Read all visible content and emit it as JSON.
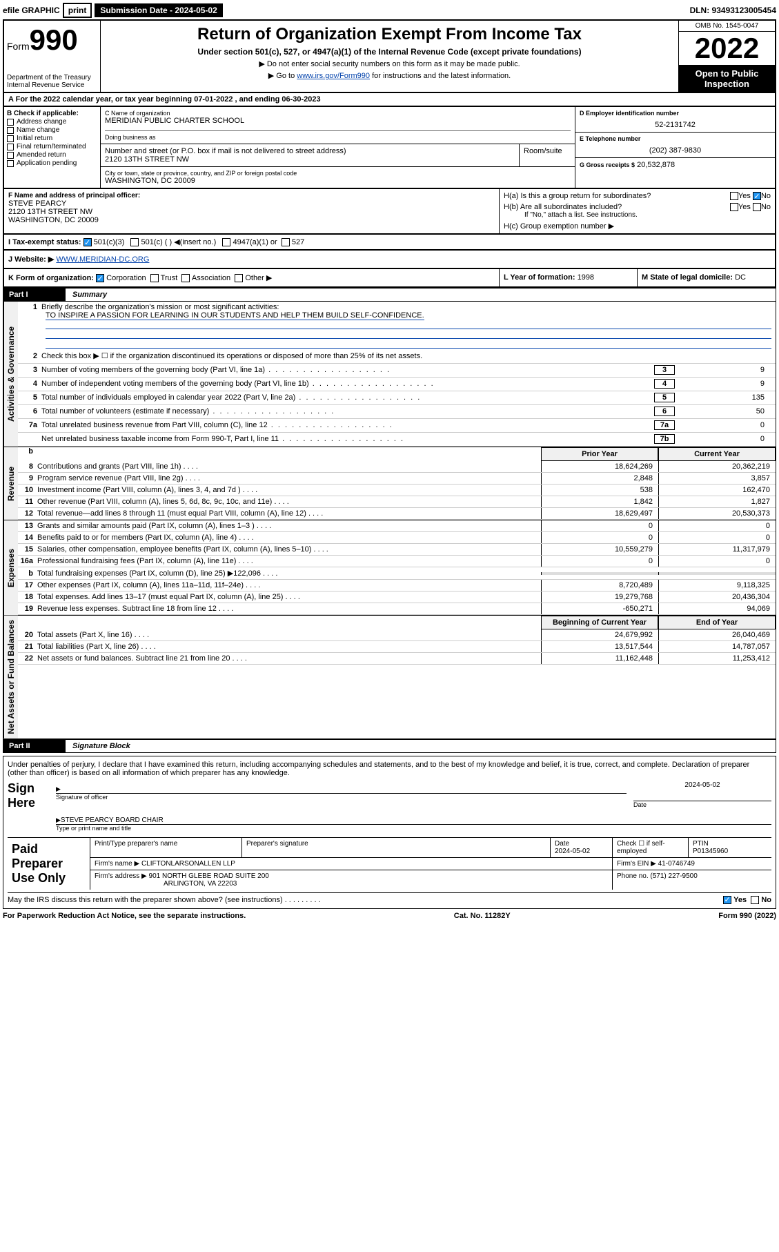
{
  "topbar": {
    "efile_label": "efile GRAPHIC",
    "print": "print",
    "sub_label": "Submission Date - 2024-05-02",
    "dln": "DLN: 93493123005454"
  },
  "header": {
    "form_word": "Form",
    "form_num": "990",
    "dept": "Department of the Treasury",
    "irs": "Internal Revenue Service",
    "title": "Return of Organization Exempt From Income Tax",
    "sub": "Under section 501(c), 527, or 4947(a)(1) of the Internal Revenue Code (except private foundations)",
    "note1": "▶ Do not enter social security numbers on this form as it may be made public.",
    "note2_pre": "▶ Go to ",
    "note2_link": "www.irs.gov/Form990",
    "note2_post": " for instructions and the latest information.",
    "omb": "OMB No. 1545-0047",
    "year": "2022",
    "open": "Open to Public Inspection"
  },
  "row_a": "For the 2022 calendar year, or tax year beginning 07-01-2022   , and ending 06-30-2023",
  "col_b": {
    "label": "B Check if applicable:",
    "items": [
      "Address change",
      "Name change",
      "Initial return",
      "Final return/terminated",
      "Amended return",
      "Application pending"
    ]
  },
  "box_c": {
    "label": "C Name of organization",
    "name": "MERIDIAN PUBLIC CHARTER SCHOOL",
    "dba": "Doing business as",
    "street_label": "Number and street (or P.O. box if mail is not delivered to street address)",
    "room": "Room/suite",
    "street": "2120 13TH STREET NW",
    "city_label": "City or town, state or province, country, and ZIP or foreign postal code",
    "city": "WASHINGTON, DC  20009"
  },
  "box_d": {
    "label": "D Employer identification number",
    "ein": "52-2131742"
  },
  "box_e": {
    "label": "E Telephone number",
    "phone": "(202) 387-9830"
  },
  "box_g": {
    "label": "G Gross receipts $",
    "val": "20,532,878"
  },
  "box_f": {
    "label": "F Name and address of principal officer:",
    "name": "STEVE PEARCY",
    "addr1": "2120 13TH STREET NW",
    "addr2": "WASHINGTON, DC  20009"
  },
  "box_h": {
    "ha": "H(a)  Is this a group return for subordinates?",
    "hb": "H(b)  Are all subordinates included?",
    "hb_note": "If \"No,\" attach a list. See instructions.",
    "hc": "H(c)  Group exemption number ▶",
    "yes": "Yes",
    "no": "No"
  },
  "box_i": {
    "label": "I   Tax-exempt status:",
    "o1": "501(c)(3)",
    "o2": "501(c) (  ) ◀(insert no.)",
    "o3": "4947(a)(1) or",
    "o4": "527"
  },
  "box_j": {
    "label": "J   Website: ▶ ",
    "url": "WWW.MERIDIAN-DC.ORG"
  },
  "box_k": {
    "label": "K Form of organization:",
    "o1": "Corporation",
    "o2": "Trust",
    "o3": "Association",
    "o4": "Other ▶"
  },
  "box_l": {
    "label": "L Year of formation:",
    "val": "1998"
  },
  "box_m": {
    "label": "M State of legal domicile:",
    "val": "DC"
  },
  "part1": {
    "label": "Part I",
    "title": "Summary"
  },
  "p1_q1": {
    "num": "1",
    "text": "Briefly describe the organization's mission or most significant activities:",
    "mission": "TO INSPIRE A PASSION FOR LEARNING IN OUR STUDENTS AND HELP THEM BUILD SELF-CONFIDENCE."
  },
  "p1_q2": "Check this box ▶ ☐  if the organization discontinued its operations or disposed of more than 25% of its net assets.",
  "gov_lines": [
    {
      "n": "3",
      "t": "Number of voting members of the governing body (Part VI, line 1a)",
      "b": "3",
      "v": "9"
    },
    {
      "n": "4",
      "t": "Number of independent voting members of the governing body (Part VI, line 1b)",
      "b": "4",
      "v": "9"
    },
    {
      "n": "5",
      "t": "Total number of individuals employed in calendar year 2022 (Part V, line 2a)",
      "b": "5",
      "v": "135"
    },
    {
      "n": "6",
      "t": "Total number of volunteers (estimate if necessary)",
      "b": "6",
      "v": "50"
    },
    {
      "n": "7a",
      "t": "Total unrelated business revenue from Part VIII, column (C), line 12",
      "b": "7a",
      "v": "0"
    },
    {
      "n": "",
      "t": "Net unrelated business taxable income from Form 990-T, Part I, line 11",
      "b": "7b",
      "v": "0"
    }
  ],
  "col_headers": {
    "b": "b",
    "prior": "Prior Year",
    "current": "Current Year"
  },
  "revenue": [
    {
      "n": "8",
      "t": "Contributions and grants (Part VIII, line 1h)",
      "p": "18,624,269",
      "c": "20,362,219"
    },
    {
      "n": "9",
      "t": "Program service revenue (Part VIII, line 2g)",
      "p": "2,848",
      "c": "3,857"
    },
    {
      "n": "10",
      "t": "Investment income (Part VIII, column (A), lines 3, 4, and 7d )",
      "p": "538",
      "c": "162,470"
    },
    {
      "n": "11",
      "t": "Other revenue (Part VIII, column (A), lines 5, 6d, 8c, 9c, 10c, and 11e)",
      "p": "1,842",
      "c": "1,827"
    },
    {
      "n": "12",
      "t": "Total revenue—add lines 8 through 11 (must equal Part VIII, column (A), line 12)",
      "p": "18,629,497",
      "c": "20,530,373"
    }
  ],
  "expenses": [
    {
      "n": "13",
      "t": "Grants and similar amounts paid (Part IX, column (A), lines 1–3 )",
      "p": "0",
      "c": "0"
    },
    {
      "n": "14",
      "t": "Benefits paid to or for members (Part IX, column (A), line 4)",
      "p": "0",
      "c": "0"
    },
    {
      "n": "15",
      "t": "Salaries, other compensation, employee benefits (Part IX, column (A), lines 5–10)",
      "p": "10,559,279",
      "c": "11,317,979"
    },
    {
      "n": "16a",
      "t": "Professional fundraising fees (Part IX, column (A), line 11e)",
      "p": "0",
      "c": "0"
    },
    {
      "n": "b",
      "t": "Total fundraising expenses (Part IX, column (D), line 25) ▶122,096",
      "p": "",
      "c": ""
    },
    {
      "n": "17",
      "t": "Other expenses (Part IX, column (A), lines 11a–11d, 11f–24e)",
      "p": "8,720,489",
      "c": "9,118,325"
    },
    {
      "n": "18",
      "t": "Total expenses. Add lines 13–17 (must equal Part IX, column (A), line 25)",
      "p": "19,279,768",
      "c": "20,436,304"
    },
    {
      "n": "19",
      "t": "Revenue less expenses. Subtract line 18 from line 12",
      "p": "-650,271",
      "c": "94,069"
    }
  ],
  "na_headers": {
    "prior": "Beginning of Current Year",
    "current": "End of Year"
  },
  "netassets": [
    {
      "n": "20",
      "t": "Total assets (Part X, line 16)",
      "p": "24,679,992",
      "c": "26,040,469"
    },
    {
      "n": "21",
      "t": "Total liabilities (Part X, line 26)",
      "p": "13,517,544",
      "c": "14,787,057"
    },
    {
      "n": "22",
      "t": "Net assets or fund balances. Subtract line 21 from line 20",
      "p": "11,162,448",
      "c": "11,253,412"
    }
  ],
  "vtabs": {
    "gov": "Activities & Governance",
    "rev": "Revenue",
    "exp": "Expenses",
    "na": "Net Assets or Fund Balances"
  },
  "part2": {
    "label": "Part II",
    "title": "Signature Block"
  },
  "sig": {
    "decl": "Under penalties of perjury, I declare that I have examined this return, including accompanying schedules and statements, and to the best of my knowledge and belief, it is true, correct, and complete. Declaration of preparer (other than officer) is based on all information of which preparer has any knowledge.",
    "sign_here": "Sign Here",
    "sig_of": "Signature of officer",
    "date_lbl": "Date",
    "date": "2024-05-02",
    "name": "STEVE PEARCY BOARD CHAIR",
    "name_lbl": "Type or print name and title"
  },
  "paid": {
    "label": "Paid Preparer Use Only",
    "h_name": "Print/Type preparer's name",
    "h_sig": "Preparer's signature",
    "h_date": "Date",
    "date": "2024-05-02",
    "check_lbl": "Check ☐ if self-employed",
    "ptin_lbl": "PTIN",
    "ptin": "P01345960",
    "firm_lbl": "Firm's name    ▶",
    "firm": "CLIFTONLARSONALLEN LLP",
    "ein_lbl": "Firm's EIN ▶",
    "ein": "41-0746749",
    "addr_lbl": "Firm's address ▶",
    "addr1": "901 NORTH GLEBE ROAD SUITE 200",
    "addr2": "ARLINGTON, VA  22203",
    "phone_lbl": "Phone no.",
    "phone": "(571) 227-9500",
    "may": "May the IRS discuss this return with the preparer shown above? (see instructions)",
    "yes": "Yes",
    "no": "No"
  },
  "footer": {
    "left": "For Paperwork Reduction Act Notice, see the separate instructions.",
    "mid": "Cat. No. 11282Y",
    "right": "Form 990 (2022)"
  }
}
